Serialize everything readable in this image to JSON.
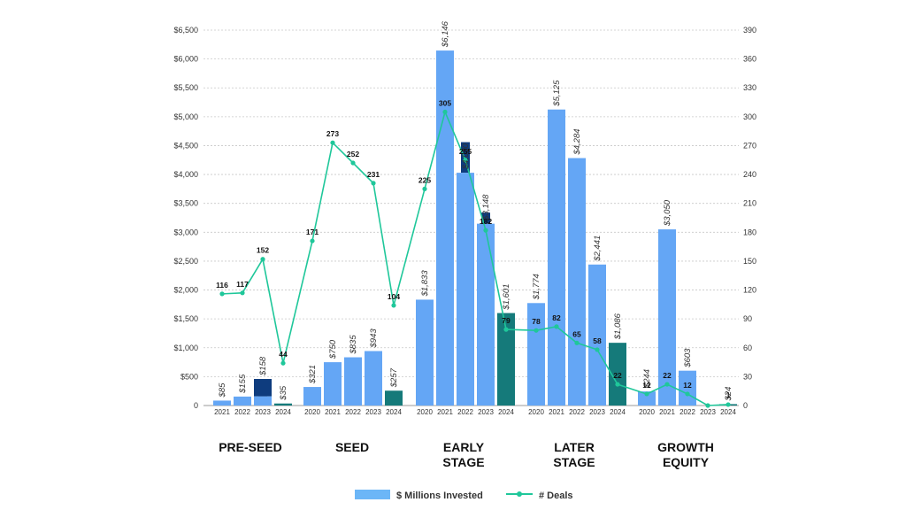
{
  "chart_data": {
    "type": "bar",
    "y_left": {
      "ticks": [
        "0",
        "$500",
        "$1,000",
        "$1,500",
        "$2,000",
        "$2,500",
        "$3,000",
        "$3,500",
        "$4,000",
        "$4,500",
        "$5,000",
        "$5,500",
        "$6,000",
        "$6,500"
      ],
      "range": [
        0,
        6500
      ]
    },
    "y_right": {
      "ticks": [
        "0",
        "30",
        "60",
        "90",
        "120",
        "150",
        "180",
        "210",
        "240",
        "270",
        "300",
        "330",
        "360",
        "390"
      ],
      "range": [
        0,
        390
      ]
    },
    "grid": true,
    "legend_position": "bottom-center",
    "legend": {
      "bars": "$ Millions Invested",
      "line": "# Deals"
    },
    "colors": {
      "bar": "#64a6f5",
      "bar_2024": "#157a7a",
      "bar_cap": "#0e3c7e",
      "line": "#1fc79a",
      "grid": "#c8c8c8"
    },
    "groups": [
      {
        "stage": [
          "PRE-SEED"
        ],
        "bars": [
          {
            "year": "2021",
            "value": 85,
            "label": "$85",
            "deals": 116,
            "deals_label": "116"
          },
          {
            "year": "2022",
            "value": 155,
            "label": "$155",
            "deals": 117,
            "deals_label": "117"
          },
          {
            "year": "2023",
            "value": 158,
            "label": "$158",
            "cap": 460,
            "deals": 152,
            "deals_label": "152"
          },
          {
            "year": "2024",
            "value": 35,
            "label": "$35",
            "deals": 44,
            "deals_label": "44"
          }
        ]
      },
      {
        "stage": [
          "SEED"
        ],
        "bars": [
          {
            "year": "2020",
            "value": 321,
            "label": "$321",
            "deals": 171,
            "deals_label": "171"
          },
          {
            "year": "2021",
            "value": 750,
            "label": "$750",
            "deals": 273,
            "deals_label": "273"
          },
          {
            "year": "2022",
            "value": 835,
            "label": "$835",
            "deals": 252,
            "deals_label": "252"
          },
          {
            "year": "2023",
            "value": 943,
            "label": "$943",
            "deals": 231,
            "deals_label": "231"
          },
          {
            "year": "2024",
            "value": 257,
            "label": "$257",
            "deals": 104,
            "deals_label": "104"
          }
        ]
      },
      {
        "stage": [
          "EARLY",
          "STAGE"
        ],
        "bars": [
          {
            "year": "2020",
            "value": 1833,
            "label": "$1,833",
            "deals": 225,
            "deals_label": "225"
          },
          {
            "year": "2021",
            "value": 6146,
            "label": "$6,146",
            "deals": 305,
            "deals_label": "305"
          },
          {
            "year": "2022",
            "value": 4030,
            "label": "$4,030",
            "cap": 4560,
            "deals": 255,
            "deals_label": "255"
          },
          {
            "year": "2023",
            "value": 3148,
            "label": "$3,148",
            "cap": 3340,
            "deals": 182,
            "deals_label": "182"
          },
          {
            "year": "2024",
            "value": 1601,
            "label": "$1,601",
            "deals": 79,
            "deals_label": "79"
          }
        ]
      },
      {
        "stage": [
          "LATER",
          "STAGE"
        ],
        "bars": [
          {
            "year": "2020",
            "value": 1774,
            "label": "$1,774",
            "deals": 78,
            "deals_label": "78"
          },
          {
            "year": "2021",
            "value": 5125,
            "label": "$5,125",
            "deals": 82,
            "deals_label": "82"
          },
          {
            "year": "2022",
            "value": 4284,
            "label": "$4,284",
            "deals": 65,
            "deals_label": "65"
          },
          {
            "year": "2023",
            "value": 2441,
            "label": "$2,441",
            "deals": 58,
            "deals_label": "58"
          },
          {
            "year": "2024",
            "value": 1086,
            "label": "$1,086",
            "deals": 22,
            "deals_label": "22"
          }
        ]
      },
      {
        "stage": [
          "GROWTH",
          "EQUITY"
        ],
        "bars": [
          {
            "year": "2020",
            "value": 244,
            "label": "$244",
            "deals": 12,
            "deals_label": "12"
          },
          {
            "year": "2021",
            "value": 3050,
            "label": "$3,050",
            "deals": 22,
            "deals_label": "22"
          },
          {
            "year": "2022",
            "value": 603,
            "label": "$603",
            "deals": 12,
            "deals_label": "12"
          },
          {
            "year": "2023",
            "value": 0,
            "label": "",
            "deals": 0,
            "deals_label": ""
          },
          {
            "year": "2024",
            "value": 24,
            "label": "$24",
            "deals": 1,
            "deals_label": "1"
          }
        ]
      }
    ]
  }
}
